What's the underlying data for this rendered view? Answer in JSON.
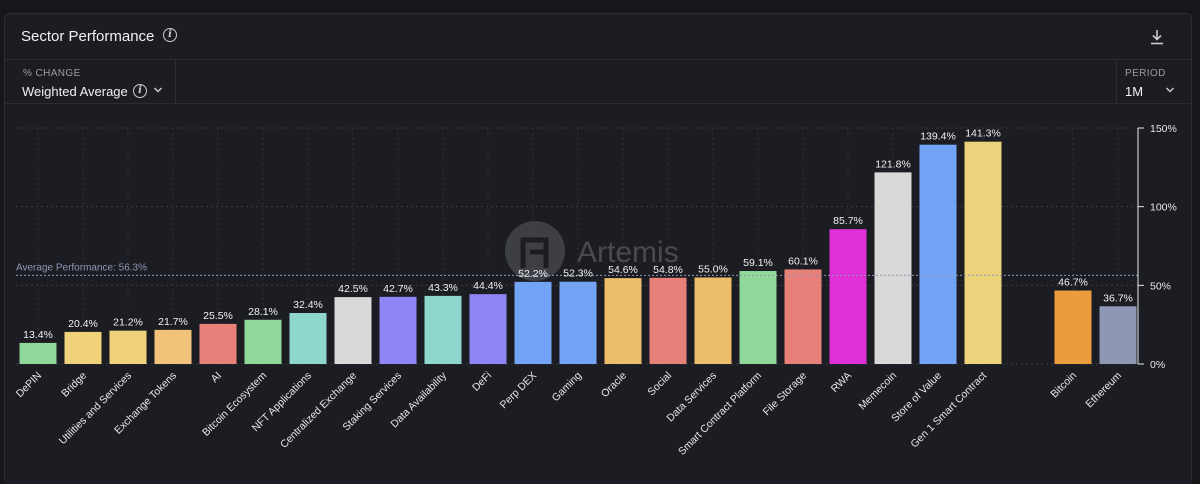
{
  "header": {
    "title": "Sector Performance"
  },
  "controls": {
    "change_label": "% CHANGE",
    "change_value": "Weighted Average",
    "period_label": "PERIOD",
    "period_value": "1M"
  },
  "watermark": {
    "text": "Artemis"
  },
  "chart_data": {
    "type": "bar",
    "categories": [
      "DePIN",
      "Bridge",
      "Utilities and Services",
      "Exchange Tokens",
      "AI",
      "Bitcoin Ecosystem",
      "NFT Applications",
      "Centralized Exchange",
      "Staking Services",
      "Data Availability",
      "DeFi",
      "Perp DEX",
      "Gaming",
      "Oracle",
      "Social",
      "Data Services",
      "Smart Contract Platform",
      "File Storage",
      "RWA",
      "Memecoin",
      "Store of Value",
      "Gen 1 Smart Contract",
      "Bitcoin",
      "Ethereum"
    ],
    "values": [
      13.4,
      20.4,
      21.2,
      21.7,
      25.5,
      28.1,
      32.4,
      42.5,
      42.7,
      43.3,
      44.4,
      52.2,
      52.3,
      54.6,
      54.8,
      55.0,
      59.1,
      60.1,
      85.7,
      121.8,
      139.4,
      141.3,
      46.7,
      36.7
    ],
    "value_labels": [
      "13.4%",
      "20.4%",
      "21.2%",
      "21.7%",
      "25.5%",
      "28.1%",
      "32.4%",
      "42.5%",
      "42.7%",
      "43.3%",
      "44.4%",
      "52.2%",
      "52.3%",
      "54.6%",
      "54.8%",
      "55.0%",
      "59.1%",
      "60.1%",
      "85.7%",
      "121.8%",
      "139.4%",
      "141.3%",
      "46.7%",
      "36.7%"
    ],
    "colors": [
      "#8fd89a",
      "#f0d27a",
      "#f0d27a",
      "#f2c27a",
      "#e8807a",
      "#8fd89a",
      "#8fd6cc",
      "#d9d9d9",
      "#8f86f5",
      "#8fd6cc",
      "#8f86f5",
      "#72a3f5",
      "#72a3f5",
      "#ecbd6a",
      "#e8807a",
      "#ecbd6a",
      "#8fd89a",
      "#e8807a",
      "#e030d8",
      "#d9d9d9",
      "#72a3f5",
      "#ecd27a",
      "#ec9b3e",
      "#8e97b4"
    ],
    "ylim": [
      0,
      150
    ],
    "yticks": [
      0,
      50,
      100,
      150
    ],
    "ytick_labels": [
      "0%",
      "50%",
      "100%",
      "150%"
    ],
    "average": {
      "value": 56.3,
      "label": "Average Performance: 56.3%"
    },
    "grid": true,
    "gap_before_index": 22
  }
}
